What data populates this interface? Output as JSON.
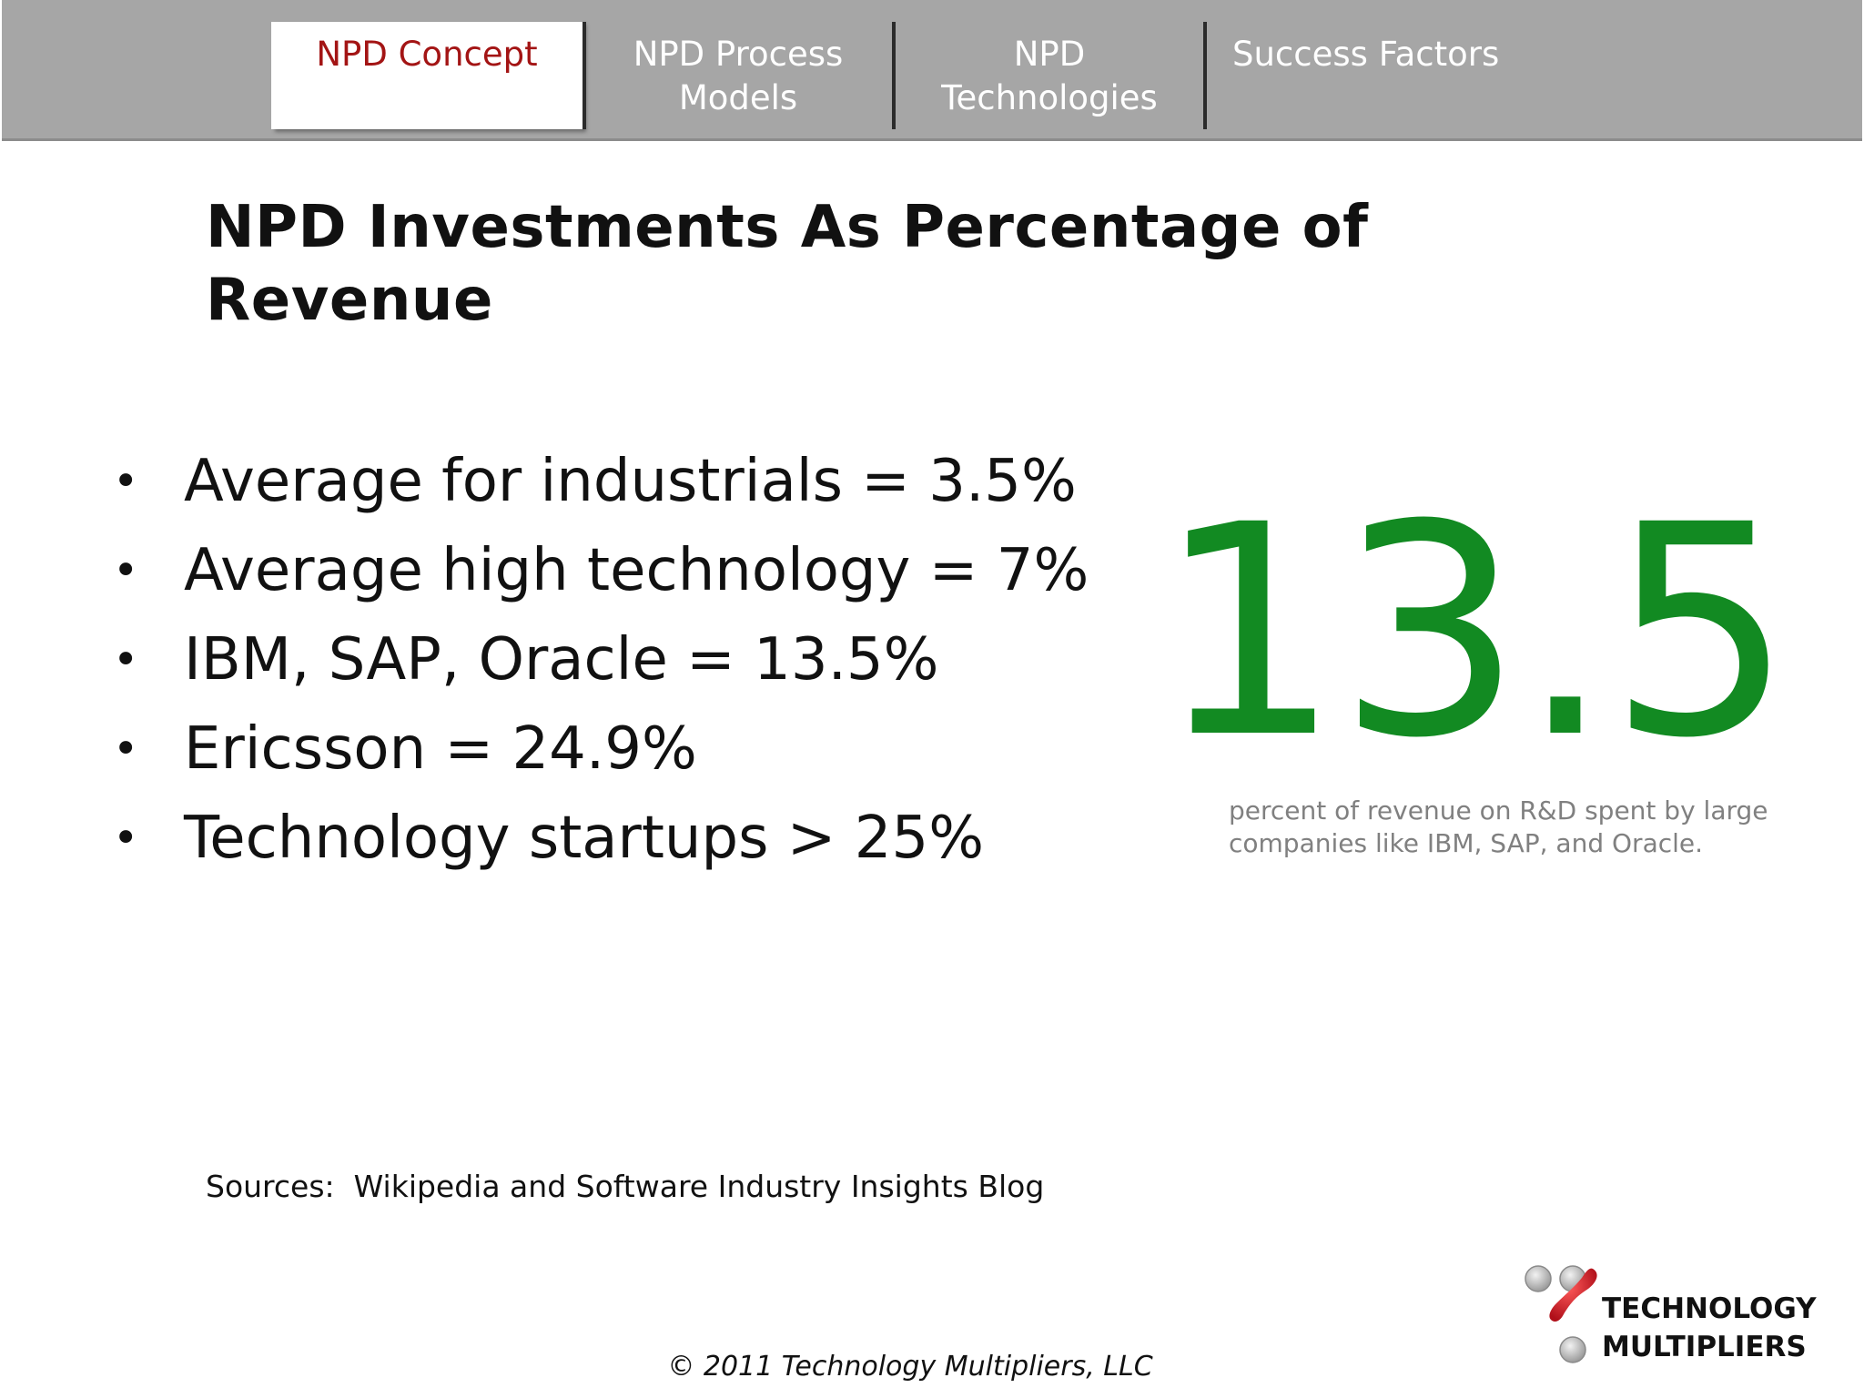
{
  "nav": {
    "tabs": [
      {
        "label_lines": [
          "NPD Concept"
        ],
        "active": true
      },
      {
        "label_lines": [
          "NPD Process",
          "Models"
        ],
        "active": false
      },
      {
        "label_lines": [
          "NPD",
          "Technologies"
        ],
        "active": false
      },
      {
        "label_lines": [
          "Success Factors"
        ],
        "active": false
      }
    ]
  },
  "slide": {
    "title": "NPD Investments As Percentage of Revenue",
    "bullet_char": "•",
    "bullets": [
      "Average for industrials = 3.5%",
      "Average high technology = 7%",
      "IBM, SAP, Oracle = 13.5%",
      "Ericsson = 24.9%",
      "Technology startups > 25%"
    ],
    "stat": {
      "value": "13.5",
      "caption_lines": [
        "percent of revenue on R&D spent by large",
        "companies like IBM, SAP, and Oracle."
      ],
      "color": "#128a22"
    },
    "sources": "Sources:  Wikipedia and Software Industry Insights Blog",
    "copyright": "© 2011 Technology Multipliers, LLC"
  },
  "logo": {
    "line1": "TECHNOLOGY",
    "line2": "MULTIPLIERS",
    "accent_color": "#d0202a",
    "dot_color": "#b8b8b8"
  }
}
